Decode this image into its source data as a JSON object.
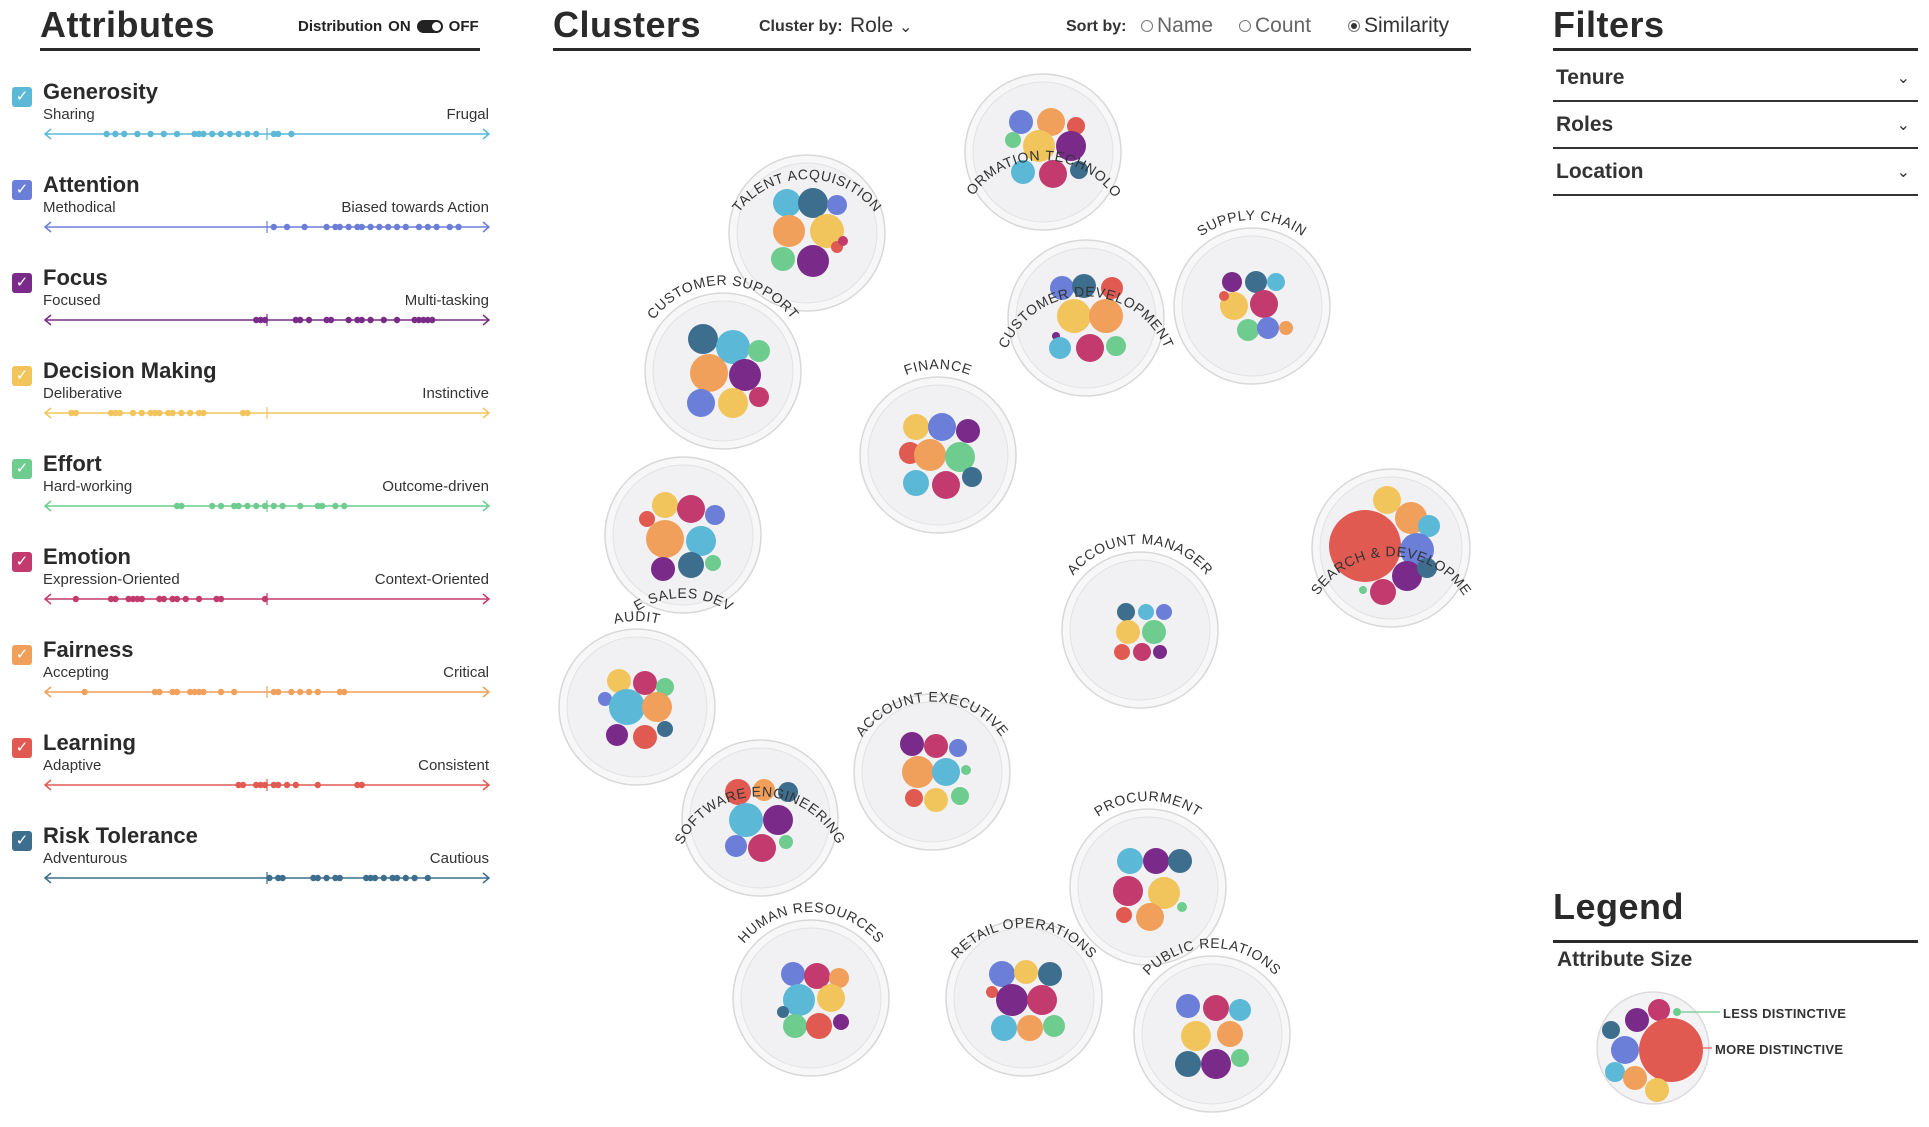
{
  "attributes_panel": {
    "title": "Attributes",
    "distribution_label": "Distribution",
    "distribution_on": "ON",
    "distribution_off": "OFF",
    "items": [
      {
        "name": "Generosity",
        "low": "Sharing",
        "high": "Frugal",
        "color": "#5bb8d6"
      },
      {
        "name": "Attention",
        "low": "Methodical",
        "high": "Biased towards Action",
        "color": "#6b7ed8"
      },
      {
        "name": "Focus",
        "low": "Focused",
        "high": "Multi-tasking",
        "color": "#7a2a88"
      },
      {
        "name": "Decision Making",
        "low": "Deliberative",
        "high": "Instinctive",
        "color": "#f2c55c"
      },
      {
        "name": "Effort",
        "low": "Hard-working",
        "high": "Outcome-driven",
        "color": "#6dcc8e"
      },
      {
        "name": "Emotion",
        "low": "Expression-Oriented",
        "high": "Context-Oriented",
        "color": "#c23a6e"
      },
      {
        "name": "Fairness",
        "low": "Accepting",
        "high": "Critical",
        "color": "#f0a05a"
      },
      {
        "name": "Learning",
        "low": "Adaptive",
        "high": "Consistent",
        "color": "#e05a52"
      },
      {
        "name": "Risk Tolerance",
        "low": "Adventurous",
        "high": "Cautious",
        "color": "#3d6e8e"
      }
    ]
  },
  "clusters_panel": {
    "title": "Clusters",
    "cluster_by_label": "Cluster by:",
    "cluster_by_value": "Role",
    "sort_by_label": "Sort by:",
    "sort_options": [
      "Name",
      "Count",
      "Similarity"
    ],
    "sort_selected": "Similarity",
    "clusters": [
      "INFORMATION TECHNOLOGY",
      "TALENT ACQUISITION",
      "CUSTOMER DEVELOPMENT",
      "SUPPLY CHAIN",
      "CUSTOMER SUPPORT",
      "FINANCE",
      "CORPORATE SALES DEVELOPMENT",
      "RESEARCH & DEVELOPMENT",
      "ACCOUNT MANAGER",
      "AUDIT",
      "ACCOUNT EXECUTIVE",
      "SOFTWARE ENGINEERING",
      "PROCURMENT",
      "HUMAN RESOURCES",
      "RETAIL OPERATIONS",
      "PUBLIC RELATIONS"
    ]
  },
  "filters_panel": {
    "title": "Filters",
    "filters": [
      "Tenure",
      "Roles",
      "Location"
    ]
  },
  "legend": {
    "title": "Legend",
    "subtitle": "Attribute Size",
    "less_label": "LESS DISTINCTIVE",
    "more_label": "MORE DISTINCTIVE"
  }
}
